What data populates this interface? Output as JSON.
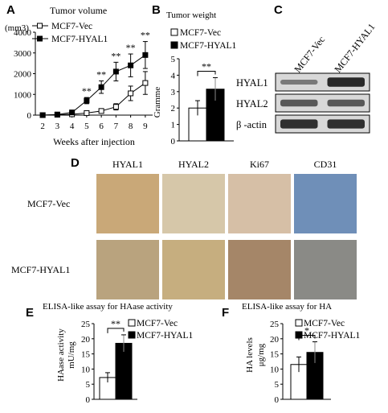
{
  "panels": {
    "A": {
      "letter": "A",
      "chart_data": {
        "type": "line",
        "title": "Tumor volume",
        "ylabel": "(mm3)",
        "xlabel": "Weeks after injection",
        "x": [
          2,
          3,
          4,
          5,
          6,
          7,
          8,
          9
        ],
        "ylim": [
          0,
          4000
        ],
        "yticks": [
          0,
          1000,
          2000,
          3000,
          4000
        ],
        "series": [
          {
            "name": "MCF7-Vec",
            "marker": "open-square",
            "values": [
              0,
              20,
              40,
              100,
              200,
              400,
              1050,
              1550
            ],
            "err": [
              0,
              10,
              20,
              40,
              80,
              150,
              350,
              550
            ]
          },
          {
            "name": "MCF7-HYAL1",
            "marker": "filled-square",
            "values": [
              0,
              30,
              130,
              700,
              1350,
              2100,
              2400,
              2900
            ],
            "err": [
              0,
              15,
              50,
              150,
              300,
              450,
              550,
              650
            ]
          }
        ],
        "annotations": [
          {
            "x": 5,
            "text": "**"
          },
          {
            "x": 6,
            "text": "**"
          },
          {
            "x": 7,
            "text": "**"
          },
          {
            "x": 8,
            "text": "**"
          },
          {
            "x": 9,
            "text": "**"
          }
        ]
      }
    },
    "B": {
      "letter": "B",
      "chart_data": {
        "type": "bar",
        "title": "Tumor weight",
        "ylabel": "Gramme",
        "categories": [
          "MCF7-Vec",
          "MCF7-HYAL1"
        ],
        "values": [
          2.0,
          3.15
        ],
        "err": [
          0.45,
          0.7
        ],
        "colors": [
          "#ffffff",
          "#000000"
        ],
        "ylim": [
          0,
          5
        ],
        "yticks": [
          0,
          1,
          2,
          3,
          4,
          5
        ],
        "significance": "**"
      }
    },
    "C": {
      "letter": "C",
      "lanes": [
        "MCF7-Vec",
        "MCF7-HYAL1"
      ],
      "rows": [
        {
          "label": "HYAL1",
          "intensity": [
            0.25,
            0.95
          ]
        },
        {
          "label": "HYAL2",
          "intensity": [
            0.55,
            0.55
          ]
        },
        {
          "label": "β -actin",
          "intensity": [
            0.9,
            0.9
          ]
        }
      ]
    },
    "D": {
      "letter": "D",
      "columns": [
        "HYAL1",
        "HYAL2",
        "Ki67",
        "CD31"
      ],
      "rows": [
        "MCF7-Vec",
        "MCF7-HYAL1"
      ],
      "tile_colors": [
        [
          "#c9a878",
          "#d6c7a9",
          "#d6bfa6",
          "#6f8fb8"
        ],
        [
          "#b9a37e",
          "#c6ae7f",
          "#a58668",
          "#8a8a86"
        ]
      ]
    },
    "E": {
      "letter": "E",
      "chart_data": {
        "type": "bar",
        "title": "ELISA-like assay for HAase activity",
        "ylabel": "HAase activity",
        "ylabel2": "mU/mg",
        "categories": [
          "MCF7-Vec",
          "MCF7-HYAL1"
        ],
        "values": [
          7.2,
          18.5
        ],
        "err": [
          1.6,
          2.8
        ],
        "colors": [
          "#ffffff",
          "#000000"
        ],
        "ylim": [
          0,
          25
        ],
        "yticks": [
          0,
          5,
          10,
          15,
          20,
          25
        ],
        "significance": "**"
      }
    },
    "F": {
      "letter": "F",
      "chart_data": {
        "type": "bar",
        "title": "ELISA-like assay for HA",
        "ylabel": "HA levels",
        "ylabel2": "μg/mg",
        "categories": [
          "MCF7-Vec",
          "MCF7-HYAL1"
        ],
        "values": [
          11.5,
          15.5
        ],
        "err": [
          2.5,
          3.5
        ],
        "colors": [
          "#ffffff",
          "#000000"
        ],
        "ylim": [
          0,
          25
        ],
        "yticks": [
          0,
          5,
          10,
          15,
          20,
          25
        ],
        "significance": "*"
      }
    }
  }
}
